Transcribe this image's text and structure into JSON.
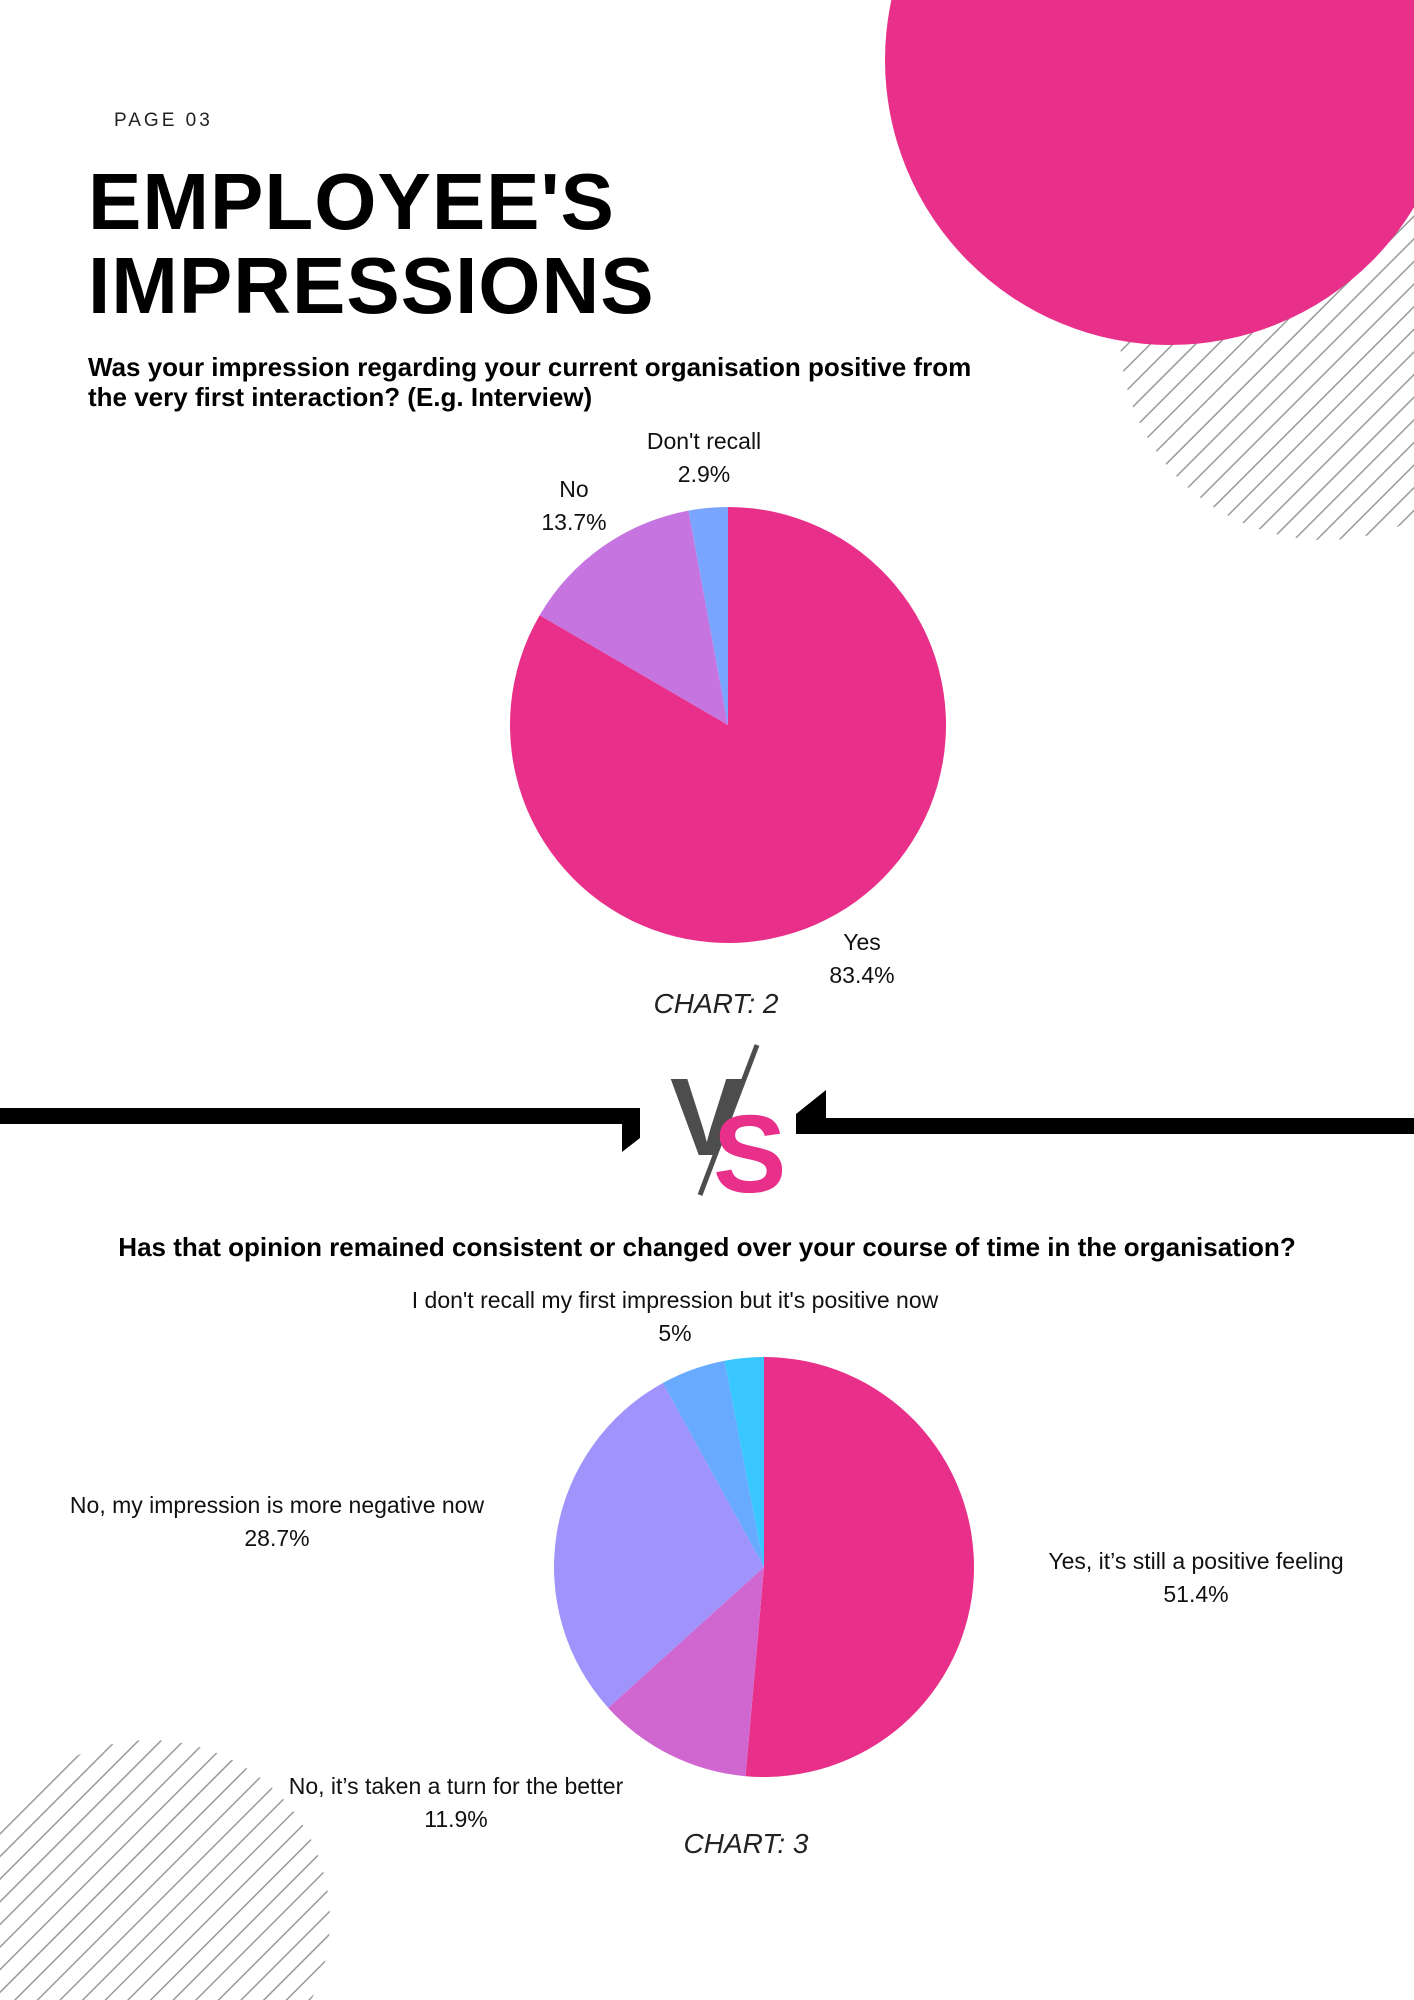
{
  "page": {
    "label": "PAGE 03",
    "title_line1": "EMPLOYEE'S",
    "title_line2": "IMPRESSIONS"
  },
  "colors": {
    "accent": "#e8308a",
    "black": "#000000",
    "gray": "#4d4d4d"
  },
  "vs": {
    "v": "V",
    "s": "S"
  },
  "chart_data": [
    {
      "type": "pie",
      "title": "Was your impression regarding your current organisation positive from the very first interaction? (E.g. Interview)",
      "caption": "CHART: 2",
      "slices": [
        {
          "label": "Yes",
          "value": 83.4,
          "display": "83.4%",
          "color": "#e8308a"
        },
        {
          "label": "No",
          "value": 13.7,
          "display": "13.7%",
          "color": "#c675e0"
        },
        {
          "label": "Don't recall",
          "value": 2.9,
          "display": "2.9%",
          "color": "#7aa5ff"
        }
      ]
    },
    {
      "type": "pie",
      "title": "Has that opinion remained consistent or changed over your course of time in the organisation?",
      "caption": "CHART: 3",
      "slices": [
        {
          "label": "Yes, it’s still a positive feeling",
          "value": 51.4,
          "display": "51.4%",
          "color": "#e8308a"
        },
        {
          "label": "No, it’s taken a turn for the better",
          "value": 11.9,
          "display": "11.9%",
          "color": "#d066d0"
        },
        {
          "label": "No, my impression is more negative now",
          "value": 28.7,
          "display": "28.7%",
          "color": "#a093fb"
        },
        {
          "label": "I don't recall my first impression but it's positive now",
          "value": 5,
          "display": "5%",
          "color": "#67aaff"
        },
        {
          "label": "",
          "value": 3,
          "display": "",
          "color": "#38c8ff"
        }
      ]
    }
  ]
}
